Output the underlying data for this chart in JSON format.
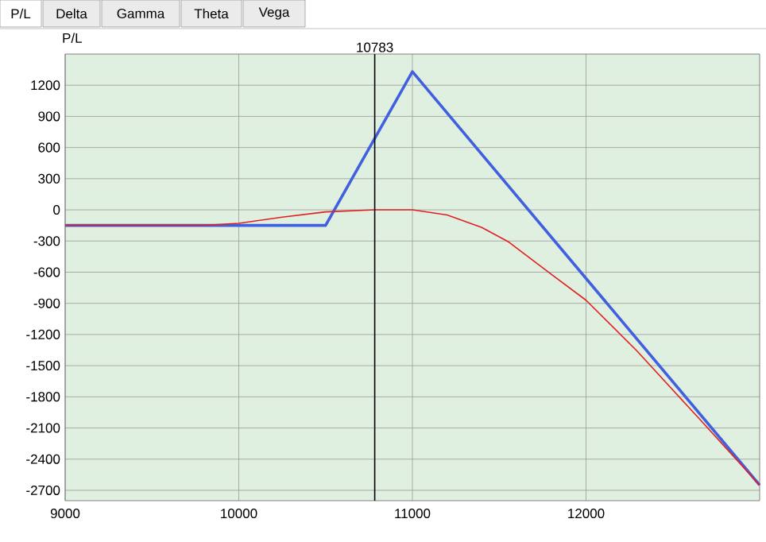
{
  "chart_data": {
    "type": "line",
    "ylabel": "P/L",
    "annotations": [
      "P/L",
      "Delta",
      "Gamma",
      "Theta",
      "Vega"
    ],
    "xlim": [
      9000,
      13000
    ],
    "ylim": [
      -2800,
      1500
    ],
    "xticks": [
      9000,
      10000,
      11000,
      12000
    ],
    "yticks": [
      -2700,
      -2400,
      -2100,
      -1800,
      -1500,
      -1200,
      -900,
      -600,
      -300,
      0,
      300,
      600,
      900,
      1200
    ],
    "grid": true,
    "marker": "none",
    "line_style": "solid",
    "ref_lines": [
      {
        "axis": "x",
        "value": 10783,
        "label": "10783",
        "color": "#000000"
      }
    ],
    "series": [
      {
        "color": "#4060e0",
        "x": [
          9000,
          10500,
          11000,
          13000
        ],
        "values": [
          -150,
          -150,
          1330,
          -2650
        ]
      },
      {
        "color": "#e02020",
        "x": [
          9000,
          9800,
          10000,
          10250,
          10500,
          10783,
          11000,
          11200,
          11400,
          11555,
          11800,
          12000,
          12294,
          12657,
          13000
        ],
        "values": [
          -150,
          -150,
          -130,
          -70,
          -20,
          0,
          0,
          -50,
          -170,
          -310,
          -620,
          -870,
          -1360,
          -2020,
          -2650
        ]
      }
    ]
  }
}
